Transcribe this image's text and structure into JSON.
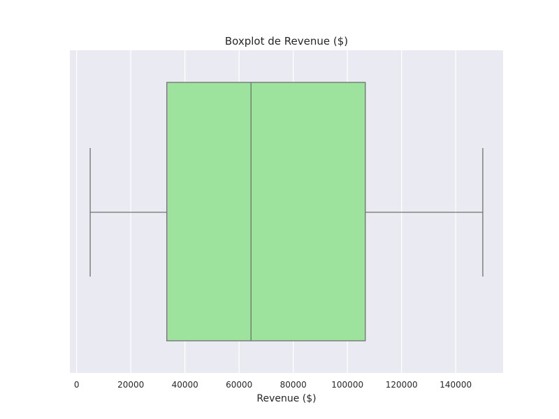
{
  "chart_data": {
    "type": "boxplot",
    "title": "Boxplot de Revenue ($)",
    "xlabel": "Revenue ($)",
    "ylabel": "",
    "orientation": "horizontal",
    "xlim": [
      -2500,
      157500
    ],
    "xticks": [
      0,
      20000,
      40000,
      60000,
      80000,
      100000,
      120000,
      140000
    ],
    "xtick_labels": [
      "0",
      "20000",
      "40000",
      "60000",
      "80000",
      "100000",
      "120000",
      "140000"
    ],
    "grid": true,
    "box": {
      "whisker_low": 5000,
      "q1": 33300,
      "median": 64400,
      "q3": 106600,
      "whisker_high": 150000
    },
    "colors": {
      "box_fill": "#9de39d",
      "lines": "#707070",
      "plot_bg": "#eaeaf2",
      "grid": "#ffffff"
    }
  }
}
